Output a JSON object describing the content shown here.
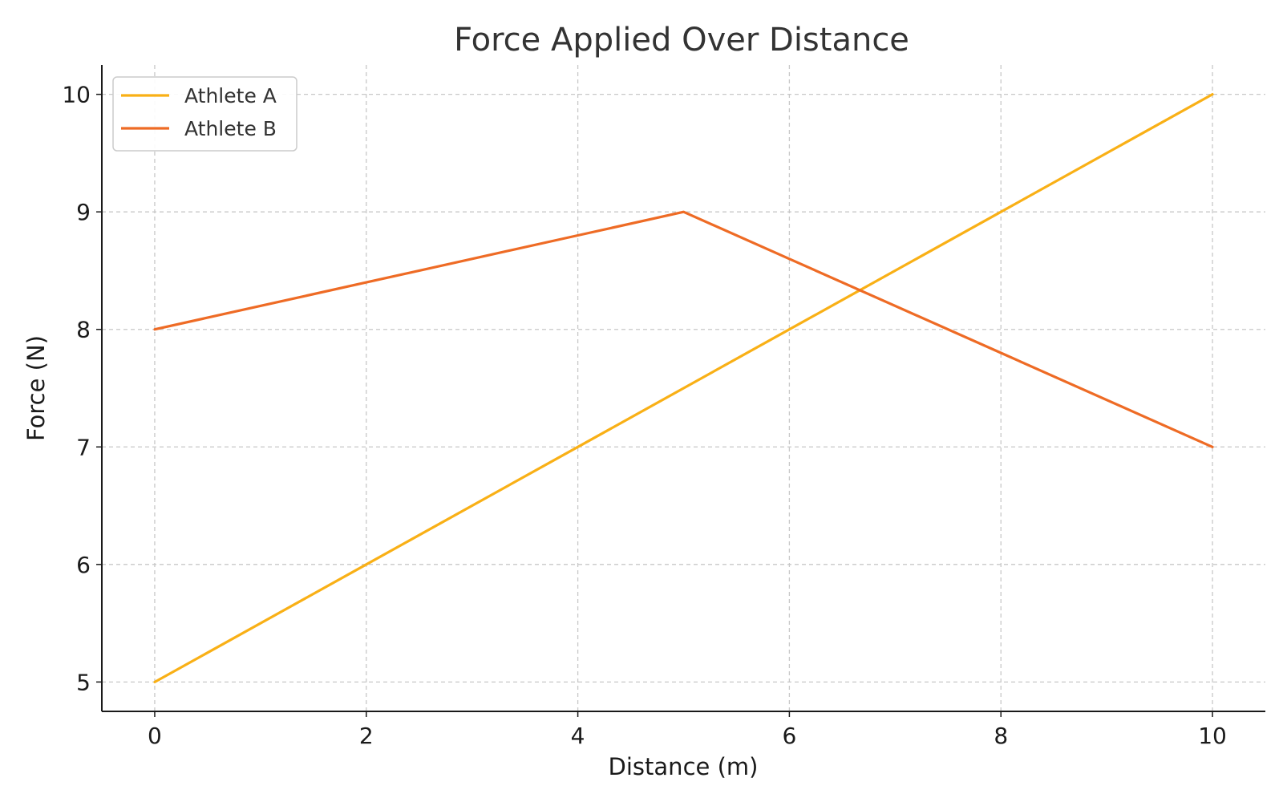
{
  "chart_data": {
    "type": "line",
    "title": "Force Applied Over Distance",
    "xlabel": "Distance (m)",
    "ylabel": "Force (N)",
    "xlim": [
      -0.5,
      10.5
    ],
    "ylim": [
      4.75,
      10.25
    ],
    "xticks": [
      "0",
      "2",
      "4",
      "6",
      "8",
      "10"
    ],
    "yticks": [
      "5",
      "6",
      "7",
      "8",
      "9",
      "10"
    ],
    "grid": true,
    "legend_position": "top-left",
    "series": [
      {
        "name": "Athlete A",
        "color": "#f9b016",
        "x": [
          0,
          2,
          4,
          6,
          8,
          10
        ],
        "y": [
          5,
          6,
          7,
          8,
          9,
          10
        ]
      },
      {
        "name": "Athlete B",
        "color": "#ee6b25",
        "x": [
          0,
          2,
          4,
          5,
          6,
          8,
          10
        ],
        "y": [
          8,
          8.4,
          8.8,
          9,
          8.6,
          7.8,
          7
        ]
      }
    ]
  }
}
